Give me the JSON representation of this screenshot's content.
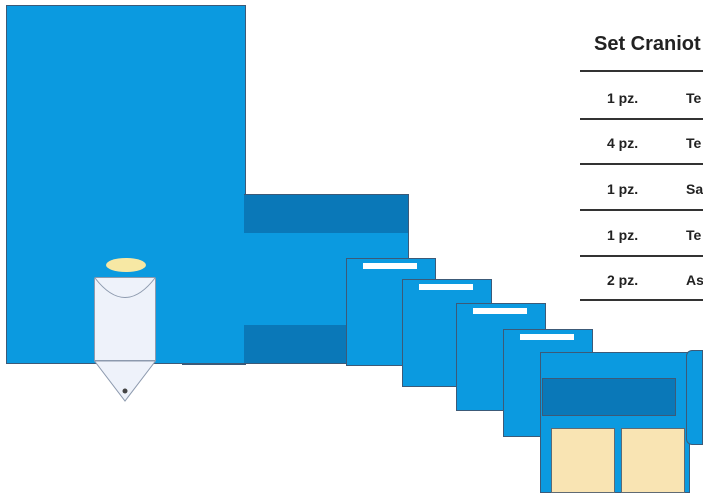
{
  "set": {
    "title": "Set Craniot",
    "rows": [
      {
        "qty": "1 pz.",
        "name": "Te"
      },
      {
        "qty": "4 pz.",
        "name": "Te"
      },
      {
        "qty": "1 pz.",
        "name": "Sa"
      },
      {
        "qty": "1 pz.",
        "name": "Te"
      },
      {
        "qty": "2 pz.",
        "name": "As"
      }
    ]
  },
  "colors": {
    "drape_blue": "#0b9ae0",
    "band_blue": "#0a78b8",
    "pad_beige": "#f9e4b3",
    "sponge_yellow": "#f7e8a4",
    "bag_white": "#eef2fa"
  },
  "icons": [
    "drape-icon",
    "bag-icon",
    "sponge-icon",
    "pad-icon"
  ]
}
